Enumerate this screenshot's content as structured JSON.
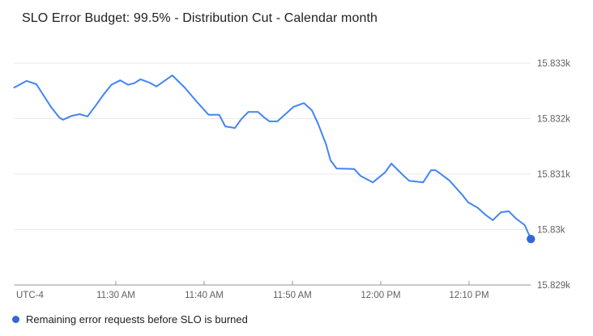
{
  "chart_data": {
    "type": "line",
    "title": "SLO Error Budget: 99.5% - Distribution Cut - Calendar month",
    "timezone_label": "UTC-4",
    "xlabel": "",
    "ylabel": "",
    "grid": "horizontal",
    "legend_position": "bottom-left",
    "x_unit": "minutes-since-midnight",
    "xlim": [
      678.5,
      737.0
    ],
    "ylim": [
      15829.0,
      15833.0
    ],
    "x_ticks": [
      {
        "t": 690,
        "label": "11:30 AM"
      },
      {
        "t": 700,
        "label": "11:40 AM"
      },
      {
        "t": 710,
        "label": "11:50 AM"
      },
      {
        "t": 720,
        "label": "12:00 PM"
      },
      {
        "t": 730,
        "label": "12:10 PM"
      }
    ],
    "y_ticks": [
      {
        "v": 15833,
        "label": "15.833k"
      },
      {
        "v": 15832,
        "label": "15.832k"
      },
      {
        "v": 15831,
        "label": "15.831k"
      },
      {
        "v": 15830,
        "label": "15.83k"
      },
      {
        "v": 15829,
        "label": "15.829k"
      }
    ],
    "series": [
      {
        "name": "Remaining error requests before SLO is burned",
        "color": "#4285f4",
        "marker_color": "#3367d6",
        "endpoint_dot": true,
        "points": [
          [
            678.5,
            15832.56
          ],
          [
            679.9,
            15832.68
          ],
          [
            681.0,
            15832.62
          ],
          [
            682.7,
            15832.2
          ],
          [
            683.6,
            15832.02
          ],
          [
            684.0,
            15831.98
          ],
          [
            685.0,
            15832.05
          ],
          [
            685.9,
            15832.08
          ],
          [
            686.8,
            15832.04
          ],
          [
            687.7,
            15832.23
          ],
          [
            688.6,
            15832.43
          ],
          [
            689.5,
            15832.61
          ],
          [
            690.5,
            15832.69
          ],
          [
            691.4,
            15832.61
          ],
          [
            692.1,
            15832.64
          ],
          [
            692.8,
            15832.71
          ],
          [
            693.8,
            15832.65
          ],
          [
            694.6,
            15832.58
          ],
          [
            695.6,
            15832.69
          ],
          [
            696.4,
            15832.78
          ],
          [
            697.8,
            15832.56
          ],
          [
            699.2,
            15832.3
          ],
          [
            700.5,
            15832.07
          ],
          [
            701.7,
            15832.07
          ],
          [
            702.4,
            15831.86
          ],
          [
            703.5,
            15831.83
          ],
          [
            704.2,
            15831.99
          ],
          [
            705.0,
            15832.12
          ],
          [
            706.1,
            15832.12
          ],
          [
            706.8,
            15832.02
          ],
          [
            707.4,
            15831.95
          ],
          [
            708.3,
            15831.95
          ],
          [
            709.2,
            15832.08
          ],
          [
            710.1,
            15832.21
          ],
          [
            711.3,
            15832.28
          ],
          [
            712.2,
            15832.15
          ],
          [
            712.9,
            15831.91
          ],
          [
            713.8,
            15831.54
          ],
          [
            714.3,
            15831.25
          ],
          [
            715.0,
            15831.1
          ],
          [
            717.0,
            15831.09
          ],
          [
            717.7,
            15830.97
          ],
          [
            719.1,
            15830.85
          ],
          [
            720.5,
            15831.03
          ],
          [
            721.2,
            15831.19
          ],
          [
            722.6,
            15830.97
          ],
          [
            723.2,
            15830.88
          ],
          [
            724.8,
            15830.85
          ],
          [
            725.7,
            15831.07
          ],
          [
            726.2,
            15831.07
          ],
          [
            726.9,
            15830.99
          ],
          [
            727.8,
            15830.88
          ],
          [
            729.2,
            15830.63
          ],
          [
            729.9,
            15830.49
          ],
          [
            731.0,
            15830.39
          ],
          [
            731.9,
            15830.26
          ],
          [
            732.7,
            15830.17
          ],
          [
            733.6,
            15830.31
          ],
          [
            734.5,
            15830.33
          ],
          [
            735.3,
            15830.2
          ],
          [
            736.3,
            15830.08
          ],
          [
            737.0,
            15829.83
          ]
        ]
      }
    ],
    "axis_colors": {
      "grid_line": "#e9e9e9",
      "axis_line": "#949494",
      "tick_label": "#616161"
    }
  }
}
